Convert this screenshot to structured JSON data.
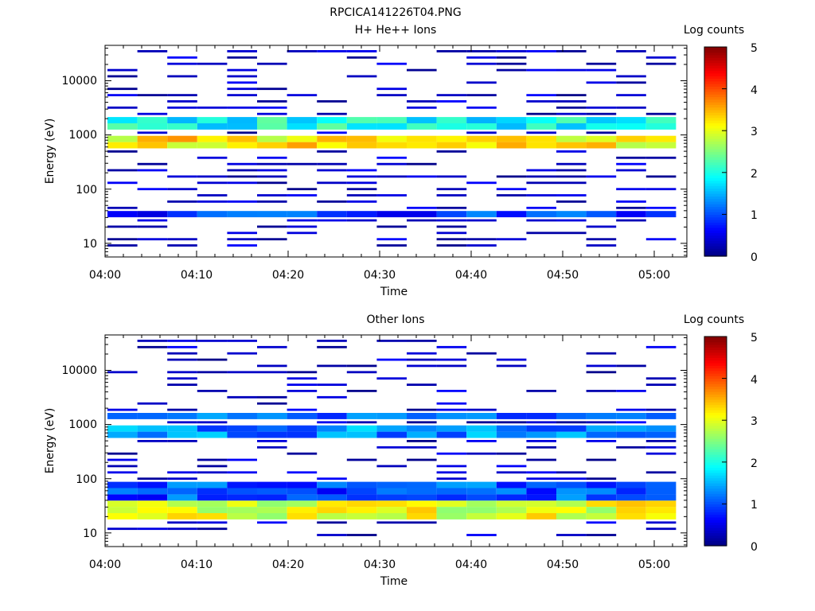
{
  "figure": {
    "title": "RPCICA141226T04.PNG"
  },
  "chart_data": [
    {
      "type": "heatmap",
      "title": "H+ He++ Ions",
      "xlabel": "Time",
      "ylabel": "Energy (eV)",
      "x_tick_labels": [
        "04:00",
        "04:10",
        "04:20",
        "04:30",
        "04:40",
        "04:50",
        "05:00"
      ],
      "y_tick_labels": [
        "10",
        "100",
        "1000",
        "10000"
      ],
      "y_scale": "log",
      "ylim": [
        5.6,
        45000
      ],
      "x_range": [
        "04:00",
        "05:03"
      ],
      "colorbar": {
        "label": "Log counts",
        "ticks": [
          "0",
          "1",
          "2",
          "3",
          "4",
          "5"
        ],
        "range": [
          0,
          5
        ],
        "colormap": "jet"
      },
      "dominant_bands": [
        {
          "energy_range_eV": [
            500,
            950
          ],
          "log_counts": 3.2
        },
        {
          "energy_range_eV": [
            1300,
            1900
          ],
          "log_counts": 1.9
        },
        {
          "energy_range_eV": [
            28,
            40
          ],
          "log_counts": 0.9
        }
      ]
    },
    {
      "type": "heatmap",
      "title": "Other Ions",
      "xlabel": "Time",
      "ylabel": "Energy (eV)",
      "x_tick_labels": [
        "04:00",
        "04:10",
        "04:20",
        "04:30",
        "04:40",
        "04:50",
        "05:00"
      ],
      "y_tick_labels": [
        "10",
        "100",
        "1000",
        "10000"
      ],
      "y_scale": "log",
      "ylim": [
        5.6,
        45000
      ],
      "x_range": [
        "04:00",
        "05:03"
      ],
      "colorbar": {
        "label": "Log counts",
        "ticks": [
          "0",
          "1",
          "2",
          "3",
          "4",
          "5"
        ],
        "range": [
          0,
          5
        ],
        "colormap": "jet"
      },
      "dominant_bands": [
        {
          "energy_range_eV": [
            18,
            45
          ],
          "log_counts": 3.0
        },
        {
          "energy_range_eV": [
            45,
            90
          ],
          "log_counts": 1.0
        },
        {
          "energy_range_eV": [
            550,
            900
          ],
          "log_counts": 1.3
        },
        {
          "energy_range_eV": [
            1400,
            1800
          ],
          "log_counts": 1.1
        }
      ]
    }
  ]
}
